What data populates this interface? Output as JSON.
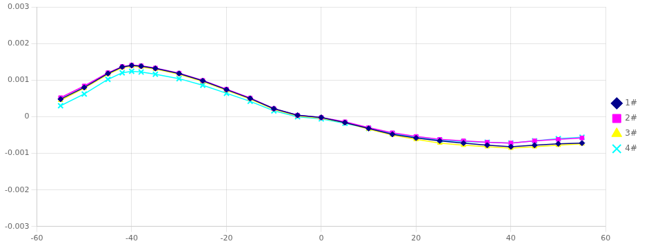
{
  "chart_data": {
    "type": "line",
    "series": [
      {
        "name": "1#",
        "color": "#00008B",
        "marker": "diamond",
        "x": [
          -55,
          -50,
          -45,
          -42,
          -40,
          -38,
          -35,
          -30,
          -25,
          -20,
          -15,
          -10,
          -5,
          0,
          5,
          10,
          15,
          20,
          25,
          30,
          35,
          40,
          45,
          50,
          55
        ],
        "values": [
          0.00048,
          0.0008,
          0.00118,
          0.00136,
          0.0014,
          0.00138,
          0.00132,
          0.00118,
          0.00098,
          0.00074,
          0.0005,
          0.00022,
          4e-05,
          -2e-05,
          -0.00016,
          -0.00032,
          -0.00048,
          -0.00058,
          -0.00066,
          -0.00072,
          -0.00078,
          -0.00082,
          -0.00078,
          -0.00074,
          -0.00072
        ]
      },
      {
        "name": "2#",
        "color": "#FF00FF",
        "marker": "square",
        "x": [
          -55,
          -50,
          -45,
          -42,
          -40,
          -38,
          -35,
          -30,
          -25,
          -20,
          -15,
          -10,
          -5,
          0,
          5,
          10,
          15,
          20,
          25,
          30,
          35,
          40,
          45,
          50,
          55
        ],
        "values": [
          0.00052,
          0.00084,
          0.0012,
          0.00137,
          0.00141,
          0.00139,
          0.00133,
          0.00119,
          0.00099,
          0.00075,
          0.00051,
          0.00022,
          4e-05,
          -2e-05,
          -0.00014,
          -0.0003,
          -0.00044,
          -0.00054,
          -0.00062,
          -0.00066,
          -0.0007,
          -0.00072,
          -0.00066,
          -0.00062,
          -0.00058
        ]
      },
      {
        "name": "3#",
        "color": "#FFFF00",
        "marker": "triangle",
        "x": [
          -55,
          -50,
          -45,
          -42,
          -40,
          -38,
          -35,
          -30,
          -25,
          -20,
          -15,
          -10,
          -5,
          0,
          5,
          10,
          15,
          20,
          25,
          30,
          35,
          40,
          45,
          50,
          55
        ],
        "values": [
          0.00045,
          0.00078,
          0.00116,
          0.00134,
          0.00138,
          0.00136,
          0.0013,
          0.00116,
          0.00096,
          0.00072,
          0.00048,
          0.0002,
          2e-05,
          -4e-05,
          -0.00016,
          -0.00034,
          -0.0005,
          -0.00062,
          -0.00072,
          -0.00078,
          -0.00082,
          -0.00086,
          -0.00082,
          -0.00078,
          -0.00074
        ]
      },
      {
        "name": "4#",
        "color": "#00FFFF",
        "marker": "x",
        "x": [
          -55,
          -50,
          -45,
          -42,
          -40,
          -38,
          -35,
          -30,
          -25,
          -20,
          -15,
          -10,
          -5,
          0,
          5,
          10,
          15,
          20,
          25,
          30,
          35,
          40,
          45,
          50,
          55
        ],
        "values": [
          0.0003,
          0.00062,
          0.00102,
          0.0012,
          0.00124,
          0.00122,
          0.00116,
          0.00104,
          0.00086,
          0.00064,
          0.00042,
          0.00016,
          0.0,
          -6e-05,
          -0.00018,
          -0.00032,
          -0.00046,
          -0.00056,
          -0.00064,
          -0.00068,
          -0.0007,
          -0.00072,
          -0.00066,
          -0.0006,
          -0.00056
        ]
      }
    ],
    "xlim": [
      -60,
      60
    ],
    "ylim": [
      -0.003,
      0.003
    ],
    "xticks": [
      -60,
      -40,
      -20,
      0,
      20,
      40,
      60
    ],
    "yticks": [
      -0.003,
      -0.002,
      -0.001,
      0,
      0.001,
      0.002,
      0.003
    ],
    "grid": true,
    "legend": "right"
  }
}
